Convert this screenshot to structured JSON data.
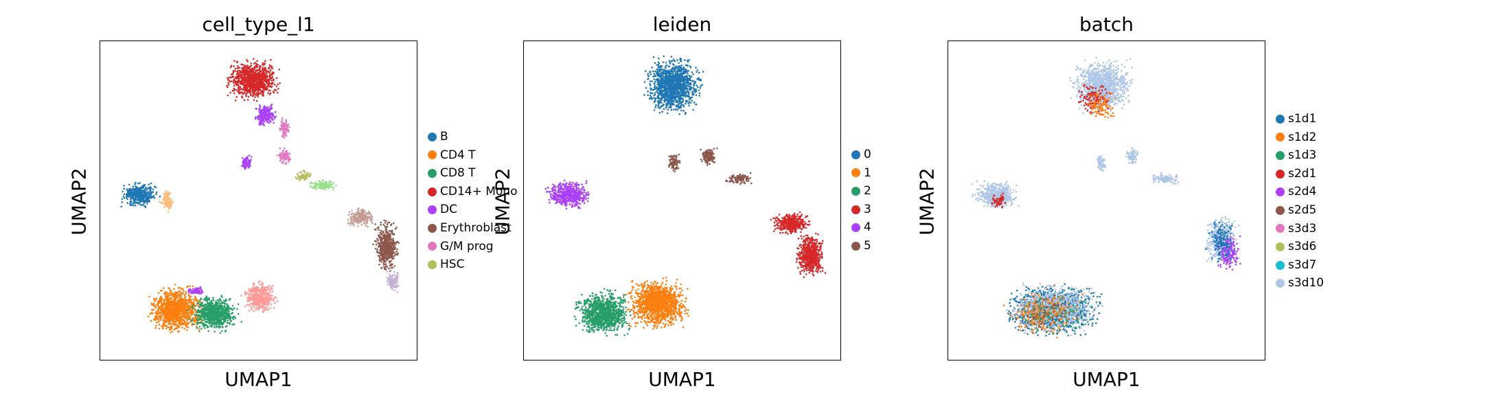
{
  "chart_data": [
    {
      "type": "scatter",
      "title": "cell_type_l1",
      "xlabel": "UMAP1",
      "ylabel": "UMAP2",
      "xlim": [
        0,
        1
      ],
      "ylim": [
        0,
        1
      ],
      "grid": false,
      "legend_placement": "right",
      "legend": [
        {
          "label": "B",
          "color": "#1f77b4"
        },
        {
          "label": "CD4 T",
          "color": "#ff7f0e"
        },
        {
          "label": "CD8 T",
          "color": "#279e68"
        },
        {
          "label": "CD14+ Mono",
          "color": "#d62728"
        },
        {
          "label": "DC",
          "color": "#aa40fc"
        },
        {
          "label": "Erythroblast",
          "color": "#8c564b"
        },
        {
          "label": "G/M prog",
          "color": "#e377c2"
        },
        {
          "label": "HSC",
          "color": "#b5bd61"
        }
      ],
      "clusters": [
        {
          "color": "#d62728",
          "cx": 0.48,
          "cy": 0.88,
          "rx": 0.1,
          "ry": 0.075,
          "n": 900
        },
        {
          "color": "#aa40fc",
          "cx": 0.52,
          "cy": 0.77,
          "rx": 0.04,
          "ry": 0.04,
          "n": 220
        },
        {
          "color": "#e377c2",
          "cx": 0.58,
          "cy": 0.73,
          "rx": 0.02,
          "ry": 0.04,
          "n": 90
        },
        {
          "color": "#1f77b4",
          "cx": 0.12,
          "cy": 0.52,
          "rx": 0.07,
          "ry": 0.045,
          "n": 420
        },
        {
          "color": "#ffbb78",
          "cx": 0.21,
          "cy": 0.5,
          "rx": 0.025,
          "ry": 0.04,
          "n": 90
        },
        {
          "color": "#aa40fc",
          "cx": 0.46,
          "cy": 0.62,
          "rx": 0.02,
          "ry": 0.03,
          "n": 70
        },
        {
          "color": "#e377c2",
          "cx": 0.58,
          "cy": 0.64,
          "rx": 0.025,
          "ry": 0.03,
          "n": 90
        },
        {
          "color": "#b5bd61",
          "cx": 0.64,
          "cy": 0.58,
          "rx": 0.03,
          "ry": 0.02,
          "n": 70
        },
        {
          "color": "#98df8a",
          "cx": 0.7,
          "cy": 0.55,
          "rx": 0.05,
          "ry": 0.02,
          "n": 120
        },
        {
          "color": "#c49c94",
          "cx": 0.82,
          "cy": 0.45,
          "rx": 0.05,
          "ry": 0.035,
          "n": 220
        },
        {
          "color": "#8c564b",
          "cx": 0.9,
          "cy": 0.36,
          "rx": 0.045,
          "ry": 0.09,
          "n": 520
        },
        {
          "color": "#c5b0d5",
          "cx": 0.92,
          "cy": 0.25,
          "rx": 0.025,
          "ry": 0.04,
          "n": 110
        },
        {
          "color": "#ff7f0e",
          "cx": 0.24,
          "cy": 0.16,
          "rx": 0.1,
          "ry": 0.085,
          "n": 1100
        },
        {
          "color": "#279e68",
          "cx": 0.36,
          "cy": 0.15,
          "rx": 0.09,
          "ry": 0.065,
          "n": 750
        },
        {
          "color": "#ff9896",
          "cx": 0.5,
          "cy": 0.2,
          "rx": 0.06,
          "ry": 0.06,
          "n": 420
        },
        {
          "color": "#aa40fc",
          "cx": 0.3,
          "cy": 0.22,
          "rx": 0.04,
          "ry": 0.015,
          "n": 60
        }
      ]
    },
    {
      "type": "scatter",
      "title": "leiden",
      "xlabel": "UMAP1",
      "ylabel": "UMAP2",
      "xlim": [
        0,
        1
      ],
      "ylim": [
        0,
        1
      ],
      "grid": false,
      "legend_placement": "right",
      "legend": [
        {
          "label": "0",
          "color": "#1f77b4"
        },
        {
          "label": "1",
          "color": "#ff7f0e"
        },
        {
          "label": "2",
          "color": "#279e68"
        },
        {
          "label": "3",
          "color": "#d62728"
        },
        {
          "label": "4",
          "color": "#aa40fc"
        },
        {
          "label": "5",
          "color": "#8c564b"
        }
      ],
      "clusters": [
        {
          "color": "#1f77b4",
          "cx": 0.47,
          "cy": 0.86,
          "rx": 0.1,
          "ry": 0.1,
          "n": 1300
        },
        {
          "color": "#aa40fc",
          "cx": 0.14,
          "cy": 0.52,
          "rx": 0.08,
          "ry": 0.05,
          "n": 550
        },
        {
          "color": "#8c564b",
          "cx": 0.47,
          "cy": 0.62,
          "rx": 0.025,
          "ry": 0.035,
          "n": 90
        },
        {
          "color": "#8c564b",
          "cx": 0.58,
          "cy": 0.64,
          "rx": 0.03,
          "ry": 0.035,
          "n": 120
        },
        {
          "color": "#8c564b",
          "cx": 0.68,
          "cy": 0.57,
          "rx": 0.05,
          "ry": 0.02,
          "n": 110
        },
        {
          "color": "#d62728",
          "cx": 0.84,
          "cy": 0.43,
          "rx": 0.07,
          "ry": 0.04,
          "n": 400
        },
        {
          "color": "#d62728",
          "cx": 0.9,
          "cy": 0.33,
          "rx": 0.05,
          "ry": 0.08,
          "n": 600
        },
        {
          "color": "#279e68",
          "cx": 0.25,
          "cy": 0.15,
          "rx": 0.1,
          "ry": 0.08,
          "n": 1100
        },
        {
          "color": "#ff7f0e",
          "cx": 0.42,
          "cy": 0.18,
          "rx": 0.11,
          "ry": 0.09,
          "n": 1300
        }
      ]
    },
    {
      "type": "scatter",
      "title": "batch",
      "xlabel": "UMAP1",
      "ylabel": "UMAP2",
      "xlim": [
        0,
        1
      ],
      "ylim": [
        0,
        1
      ],
      "grid": false,
      "legend_placement": "right",
      "legend": [
        {
          "label": "s1d1",
          "color": "#1f77b4"
        },
        {
          "label": "s1d2",
          "color": "#ff7f0e"
        },
        {
          "label": "s1d3",
          "color": "#279e68"
        },
        {
          "label": "s2d1",
          "color": "#d62728"
        },
        {
          "label": "s2d4",
          "color": "#aa40fc"
        },
        {
          "label": "s2d5",
          "color": "#8c564b"
        },
        {
          "label": "s3d3",
          "color": "#e377c2"
        },
        {
          "label": "s3d6",
          "color": "#b5bd61"
        },
        {
          "label": "s3d7",
          "color": "#17becf"
        },
        {
          "label": "s3d10",
          "color": "#aec7e8"
        }
      ],
      "clusters": [
        {
          "color": "#aec7e8",
          "cx": 0.48,
          "cy": 0.86,
          "rx": 0.11,
          "ry": 0.1,
          "n": 1100
        },
        {
          "color": "#d62728",
          "cx": 0.46,
          "cy": 0.82,
          "rx": 0.06,
          "ry": 0.06,
          "n": 120
        },
        {
          "color": "#ff7f0e",
          "cx": 0.48,
          "cy": 0.8,
          "rx": 0.06,
          "ry": 0.06,
          "n": 90
        },
        {
          "color": "#aec7e8",
          "cx": 0.15,
          "cy": 0.52,
          "rx": 0.08,
          "ry": 0.05,
          "n": 500
        },
        {
          "color": "#d62728",
          "cx": 0.16,
          "cy": 0.5,
          "rx": 0.03,
          "ry": 0.03,
          "n": 60
        },
        {
          "color": "#aec7e8",
          "cx": 0.48,
          "cy": 0.62,
          "rx": 0.02,
          "ry": 0.03,
          "n": 70
        },
        {
          "color": "#aec7e8",
          "cx": 0.58,
          "cy": 0.64,
          "rx": 0.025,
          "ry": 0.03,
          "n": 80
        },
        {
          "color": "#aec7e8",
          "cx": 0.68,
          "cy": 0.57,
          "rx": 0.05,
          "ry": 0.02,
          "n": 100
        },
        {
          "color": "#aec7e8",
          "cx": 0.86,
          "cy": 0.38,
          "rx": 0.06,
          "ry": 0.09,
          "n": 500
        },
        {
          "color": "#aa40fc",
          "cx": 0.88,
          "cy": 0.34,
          "rx": 0.05,
          "ry": 0.07,
          "n": 160
        },
        {
          "color": "#1f77b4",
          "cx": 0.86,
          "cy": 0.38,
          "rx": 0.05,
          "ry": 0.08,
          "n": 140
        },
        {
          "color": "#1f77b4",
          "cx": 0.33,
          "cy": 0.16,
          "rx": 0.17,
          "ry": 0.09,
          "n": 1200
        },
        {
          "color": "#aec7e8",
          "cx": 0.33,
          "cy": 0.16,
          "rx": 0.17,
          "ry": 0.09,
          "n": 900
        },
        {
          "color": "#ff7f0e",
          "cx": 0.3,
          "cy": 0.15,
          "rx": 0.14,
          "ry": 0.08,
          "n": 250
        },
        {
          "color": "#279e68",
          "cx": 0.33,
          "cy": 0.15,
          "rx": 0.14,
          "ry": 0.08,
          "n": 120
        },
        {
          "color": "#8c564b",
          "cx": 0.32,
          "cy": 0.16,
          "rx": 0.14,
          "ry": 0.08,
          "n": 80
        }
      ]
    }
  ]
}
